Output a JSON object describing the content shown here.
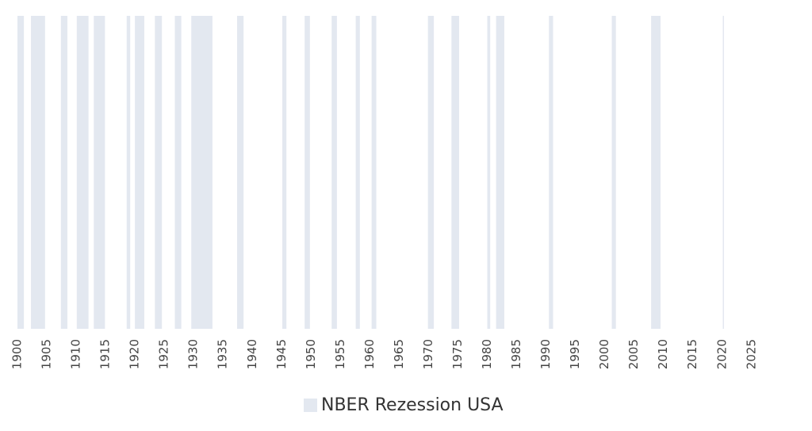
{
  "chart_data": {
    "type": "interval",
    "series": [
      {
        "name": "NBER Rezession USA",
        "color": "#e3e8f0",
        "intervals": [
          [
            1900.0,
            1901.1
          ],
          [
            1902.3,
            1904.7
          ],
          [
            1907.4,
            1908.5
          ],
          [
            1910.1,
            1912.1
          ],
          [
            1913.0,
            1914.9
          ],
          [
            1918.6,
            1919.2
          ],
          [
            1920.0,
            1921.6
          ],
          [
            1923.4,
            1924.6
          ],
          [
            1926.8,
            1927.9
          ],
          [
            1929.6,
            1933.2
          ],
          [
            1937.4,
            1938.5
          ],
          [
            1945.1,
            1945.8
          ],
          [
            1948.9,
            1949.8
          ],
          [
            1953.5,
            1954.4
          ],
          [
            1957.6,
            1958.3
          ],
          [
            1960.3,
            1961.1
          ],
          [
            1969.9,
            1970.9
          ],
          [
            1973.9,
            1975.2
          ],
          [
            1980.0,
            1980.5
          ],
          [
            1981.5,
            1982.9
          ],
          [
            1990.5,
            1991.2
          ],
          [
            2001.2,
            2001.9
          ],
          [
            2007.9,
            2009.5
          ],
          [
            2020.1,
            2020.3
          ]
        ]
      }
    ],
    "xlim": [
      1900,
      2028
    ],
    "xticks": [
      1900,
      1905,
      1910,
      1915,
      1920,
      1925,
      1930,
      1935,
      1940,
      1945,
      1950,
      1955,
      1960,
      1965,
      1970,
      1975,
      1980,
      1985,
      1990,
      1995,
      2000,
      2005,
      2010,
      2015,
      2020,
      2025
    ],
    "legend": "bottom"
  }
}
